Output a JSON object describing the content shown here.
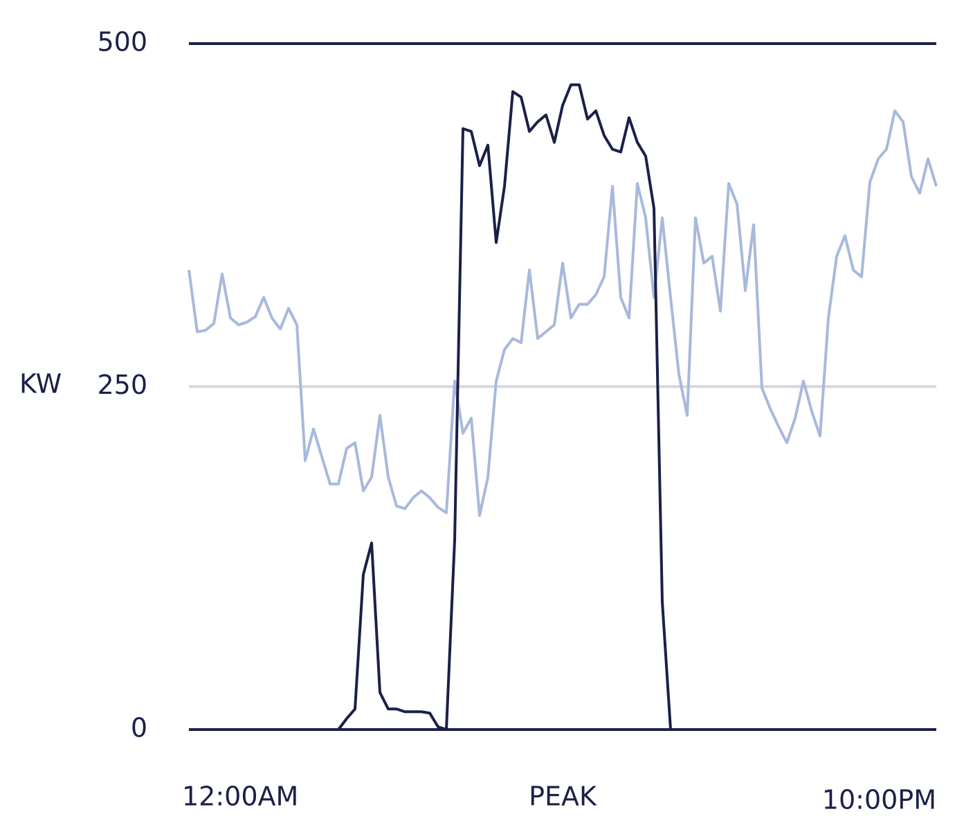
{
  "chart_data": {
    "type": "line",
    "ylabel": "KW",
    "ylim": [
      0,
      500
    ],
    "yticks": [
      0,
      250,
      500
    ],
    "xlim": [
      0,
      90
    ],
    "xticks": [
      {
        "value": 0,
        "label": "12:00AM"
      },
      {
        "value": 45,
        "label": "PEAK"
      },
      {
        "value": 90,
        "label": "10:00PM"
      }
    ],
    "grid": true,
    "grid_color": "#d5d7e0",
    "axis_color": "#1b2048",
    "x": [
      0,
      1,
      2,
      3,
      4,
      5,
      6,
      7,
      8,
      9,
      10,
      11,
      12,
      13,
      14,
      15,
      16,
      17,
      18,
      19,
      20,
      21,
      22,
      23,
      24,
      25,
      26,
      27,
      28,
      29,
      30,
      31,
      32,
      33,
      34,
      35,
      36,
      37,
      38,
      39,
      40,
      41,
      42,
      43,
      44,
      45,
      46,
      47,
      48,
      49,
      50,
      51,
      52,
      53,
      54,
      55,
      56,
      57,
      58,
      59,
      60,
      61,
      62,
      63,
      64,
      65,
      66,
      67,
      68,
      69,
      70,
      71,
      72,
      73,
      74,
      75,
      76,
      77,
      78,
      79,
      80,
      81,
      82,
      83,
      84,
      85,
      86,
      87,
      88,
      89,
      90
    ],
    "series": [
      {
        "color": "#a7b9dc",
        "values": [
          335,
          290,
          291,
          296,
          332,
          300,
          295,
          297,
          301,
          315,
          300,
          292,
          307,
          295,
          196,
          219,
          199,
          179,
          179,
          205,
          209,
          174,
          184,
          229,
          184,
          163,
          161,
          169,
          174,
          169,
          162,
          158,
          254,
          216,
          227,
          156,
          184,
          254,
          277,
          285,
          282,
          335,
          285,
          290,
          295,
          340,
          300,
          310,
          310,
          317,
          330,
          396,
          315,
          300,
          398,
          373,
          315,
          373,
          315,
          259,
          229,
          373,
          340,
          345,
          305,
          398,
          383,
          320,
          368,
          249,
          234,
          221,
          209,
          227,
          254,
          232,
          214,
          300,
          345,
          360,
          335,
          330,
          399,
          416,
          423,
          451,
          443,
          403,
          391,
          416,
          396
        ]
      },
      {
        "color": "#1b2048",
        "values": [
          0,
          0,
          0,
          0,
          0,
          0,
          0,
          0,
          0,
          0,
          0,
          0,
          0,
          0,
          0,
          0,
          0,
          0,
          0,
          8,
          15,
          113,
          136,
          27,
          15,
          15,
          13,
          13,
          13,
          12,
          2,
          0,
          138,
          438,
          436,
          411,
          426,
          355,
          396,
          465,
          461,
          436,
          443,
          448,
          428,
          455,
          470,
          470,
          445,
          451,
          433,
          423,
          421,
          446,
          428,
          418,
          380,
          93,
          0,
          0,
          0,
          0,
          0,
          0,
          0,
          0,
          0,
          0,
          0,
          0,
          0,
          0,
          0,
          0,
          0,
          0,
          0,
          0,
          0,
          0,
          0,
          0,
          0,
          0,
          0,
          0,
          0,
          0,
          0,
          0,
          0
        ]
      }
    ]
  }
}
